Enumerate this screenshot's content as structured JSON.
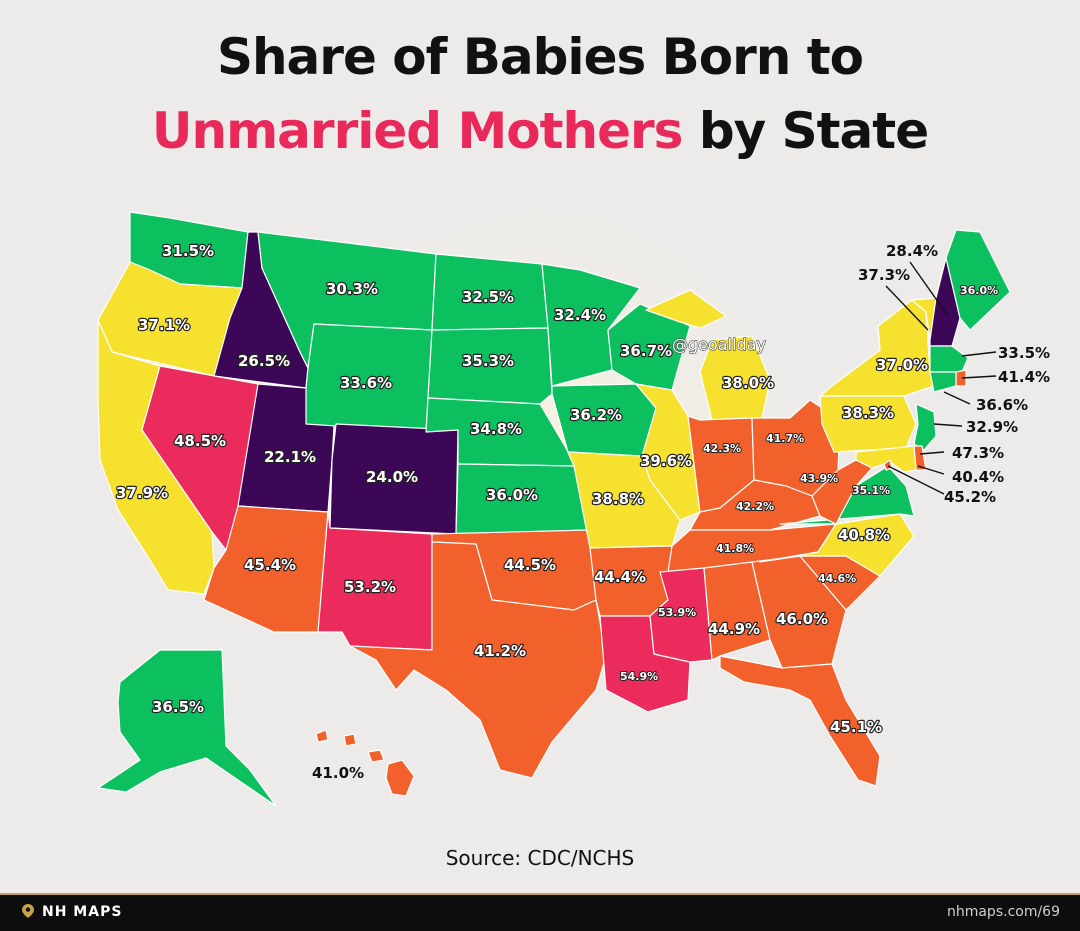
{
  "title": {
    "line1": "Share of Babies Born to",
    "highlight": "Unmarried Mothers",
    "line2_rest": " by State"
  },
  "watermark": "@geoallday",
  "source": "Source: CDC/NCHS",
  "footer": {
    "brand": "NH MAPS",
    "site": "nhmaps.com/69"
  },
  "colors": {
    "purple": "#3d0757",
    "green": "#0cbf5f",
    "yellow": "#f6e12e",
    "orange": "#f2602c",
    "pink": "#ea2b5c",
    "accent": "#e8295a"
  },
  "states": [
    {
      "state": "WA",
      "value": "31.5%",
      "color": "green"
    },
    {
      "state": "OR",
      "value": "37.1%",
      "color": "yellow"
    },
    {
      "state": "CA",
      "value": "37.9%",
      "color": "yellow"
    },
    {
      "state": "ID",
      "value": "26.5%",
      "color": "purple"
    },
    {
      "state": "NV",
      "value": "48.5%",
      "color": "pink"
    },
    {
      "state": "UT",
      "value": "22.1%",
      "color": "purple"
    },
    {
      "state": "AZ",
      "value": "45.4%",
      "color": "orange"
    },
    {
      "state": "MT",
      "value": "30.3%",
      "color": "green"
    },
    {
      "state": "WY",
      "value": "33.6%",
      "color": "green"
    },
    {
      "state": "CO",
      "value": "24.0%",
      "color": "purple"
    },
    {
      "state": "NM",
      "value": "53.2%",
      "color": "pink"
    },
    {
      "state": "ND",
      "value": "32.5%",
      "color": "green"
    },
    {
      "state": "SD",
      "value": "35.3%",
      "color": "green"
    },
    {
      "state": "NE",
      "value": "34.8%",
      "color": "green"
    },
    {
      "state": "KS",
      "value": "36.0%",
      "color": "green"
    },
    {
      "state": "OK",
      "value": "44.5%",
      "color": "orange"
    },
    {
      "state": "TX",
      "value": "41.2%",
      "color": "orange"
    },
    {
      "state": "MN",
      "value": "32.4%",
      "color": "green"
    },
    {
      "state": "IA",
      "value": "36.2%",
      "color": "green"
    },
    {
      "state": "MO",
      "value": "38.8%",
      "color": "yellow"
    },
    {
      "state": "AR",
      "value": "44.4%",
      "color": "orange"
    },
    {
      "state": "LA",
      "value": "54.9%",
      "color": "pink"
    },
    {
      "state": "WI",
      "value": "36.7%",
      "color": "green"
    },
    {
      "state": "IL",
      "value": "39.6%",
      "color": "yellow"
    },
    {
      "state": "MI",
      "value": "38.0%",
      "color": "yellow"
    },
    {
      "state": "IN",
      "value": "42.3%",
      "color": "orange"
    },
    {
      "state": "OH",
      "value": "41.7%",
      "color": "orange"
    },
    {
      "state": "KY",
      "value": "42.2%",
      "color": "orange"
    },
    {
      "state": "TN",
      "value": "41.8%",
      "color": "orange"
    },
    {
      "state": "MS",
      "value": "53.9%",
      "color": "pink"
    },
    {
      "state": "AL",
      "value": "44.9%",
      "color": "orange"
    },
    {
      "state": "GA",
      "value": "46.0%",
      "color": "orange"
    },
    {
      "state": "FL",
      "value": "45.1%",
      "color": "orange"
    },
    {
      "state": "SC",
      "value": "44.6%",
      "color": "orange"
    },
    {
      "state": "NC",
      "value": "40.8%",
      "color": "yellow"
    },
    {
      "state": "VA",
      "value": "35.1%",
      "color": "green"
    },
    {
      "state": "WV",
      "value": "43.9%",
      "color": "orange"
    },
    {
      "state": "PA",
      "value": "38.3%",
      "color": "yellow"
    },
    {
      "state": "NY",
      "value": "37.0%",
      "color": "yellow"
    },
    {
      "state": "VT",
      "value": "37.3%",
      "color": "yellow"
    },
    {
      "state": "NH",
      "value": "28.4%",
      "color": "purple"
    },
    {
      "state": "ME",
      "value": "36.0%",
      "color": "green"
    },
    {
      "state": "MA",
      "value": "33.5%",
      "color": "green"
    },
    {
      "state": "RI",
      "value": "41.4%",
      "color": "orange"
    },
    {
      "state": "CT",
      "value": "36.6%",
      "color": "green"
    },
    {
      "state": "NJ",
      "value": "32.9%",
      "color": "green"
    },
    {
      "state": "DE",
      "value": "47.3%",
      "color": "orange"
    },
    {
      "state": "MD",
      "value": "40.4%",
      "color": "yellow"
    },
    {
      "state": "DC",
      "value": "45.2%",
      "color": "orange"
    },
    {
      "state": "AK",
      "value": "36.5%",
      "color": "green"
    },
    {
      "state": "HI",
      "value": "41.0%",
      "color": "orange"
    }
  ]
}
